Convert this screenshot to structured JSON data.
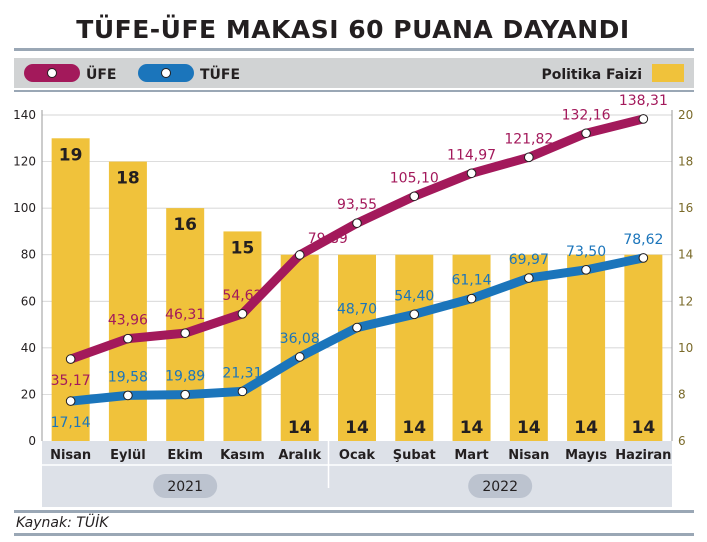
{
  "chart_data": {
    "type": "bar",
    "title": "TÜFE-ÜFE MAKASI 60 PUANA DAYANDI",
    "categories": [
      "Nisan",
      "Eylül",
      "Ekim",
      "Kasım",
      "Aralık",
      "Ocak",
      "Şubat",
      "Mart",
      "Nisan",
      "Mayıs",
      "Haziran"
    ],
    "year_groups": [
      {
        "label": "2021",
        "start": 0,
        "end": 4
      },
      {
        "label": "2022",
        "start": 5,
        "end": 10
      }
    ],
    "left_axis": {
      "ylim": [
        0,
        140
      ],
      "ticks": [
        "0",
        "20",
        "40",
        "60",
        "80",
        "100",
        "120",
        "140"
      ]
    },
    "right_axis": {
      "ylim": [
        6,
        20
      ],
      "ticks": [
        "6",
        "8",
        "10",
        "12",
        "14",
        "16",
        "18",
        "20"
      ]
    },
    "series": [
      {
        "name": "ÜFE",
        "type": "line",
        "axis": "left",
        "color": "#a3195b",
        "values": [
          35.17,
          43.96,
          46.31,
          54.62,
          79.89,
          93.55,
          105.1,
          114.97,
          121.82,
          132.16,
          138.31
        ],
        "labels": [
          "35,17",
          "43,96",
          "46,31",
          "54,62",
          "79,89",
          "93,55",
          "105,10",
          "114,97",
          "121,82",
          "132,16",
          "138,31"
        ]
      },
      {
        "name": "TÜFE",
        "type": "line",
        "axis": "left",
        "color": "#1b75bb",
        "values": [
          17.14,
          19.58,
          19.89,
          21.31,
          36.08,
          48.7,
          54.4,
          61.14,
          69.97,
          73.5,
          78.62
        ],
        "labels": [
          "17,14",
          "19,58",
          "19,89",
          "21,31",
          "36,08",
          "48,70",
          "54,40",
          "61,14",
          "69,97",
          "73,50",
          "78,62"
        ]
      },
      {
        "name": "Politika Faizi",
        "type": "bar",
        "axis": "right",
        "color": "#f0c23b",
        "values": [
          19,
          18,
          16,
          15,
          14,
          14,
          14,
          14,
          14,
          14,
          14
        ],
        "labels": [
          "19",
          "18",
          "16",
          "15",
          "14",
          "14",
          "14",
          "14",
          "14",
          "14",
          "14"
        ]
      }
    ],
    "legend": {
      "position": "top",
      "items": [
        "ÜFE",
        "TÜFE",
        "Politika Faizi"
      ]
    },
    "source": "Kaynak: TÜİK"
  }
}
